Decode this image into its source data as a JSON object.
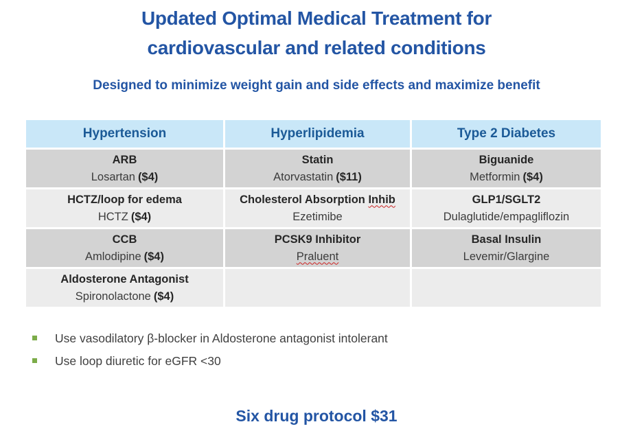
{
  "slide": {
    "title_line1": "Updated Optimal Medical Treatment for",
    "title_line2": "cardiovascular and related conditions",
    "subtitle": "Designed to minimize weight gain and side effects and maximize benefit",
    "footer": "Six drug protocol $31"
  },
  "colors": {
    "title_blue": "#2355A4",
    "header_text_blue": "#1B5A97",
    "header_bg": "#C9E7F8",
    "row_dark": "#D3D3D3",
    "row_light": "#ECECEC",
    "bullet_green": "#7CAC49",
    "squiggle_red": "#CC2222"
  },
  "table": {
    "columns": [
      "Hypertension",
      "Hyperlipidemia",
      "Type 2 Diabetes"
    ],
    "rows": [
      [
        {
          "class": "ARB",
          "drug": "Losartan",
          "price": "($4)"
        },
        {
          "class": "Statin",
          "drug": "Atorvastatin",
          "price": "($11)"
        },
        {
          "class": "Biguanide",
          "drug": "Metformin",
          "price": "($4)"
        }
      ],
      [
        {
          "class": "HCTZ/loop for edema",
          "drug": "HCTZ",
          "price": "($4)"
        },
        {
          "class": "Cholesterol Absorption",
          "class_tail": "Inhib",
          "drug": "Ezetimibe",
          "price": ""
        },
        {
          "class": "GLP1/SGLT2",
          "drug": "Dulaglutide/empagliflozin",
          "price": ""
        }
      ],
      [
        {
          "class": "CCB",
          "drug": "Amlodipine",
          "price": "($4)"
        },
        {
          "class": "PCSK9 Inhibitor",
          "drug": "Praluent",
          "price": ""
        },
        {
          "class": "Basal Insulin",
          "drug": "Levemir/Glargine",
          "price": ""
        }
      ],
      [
        {
          "class": "Aldosterone Antagonist",
          "drug": "Spironolactone",
          "price": "($4)"
        },
        {
          "class": "",
          "drug": "",
          "price": ""
        },
        {
          "class": "",
          "drug": "",
          "price": ""
        }
      ]
    ]
  },
  "bullets": [
    "Use vasodilatory β-blocker in Aldosterone antagonist intolerant",
    "Use loop diuretic for eGFR <30"
  ]
}
